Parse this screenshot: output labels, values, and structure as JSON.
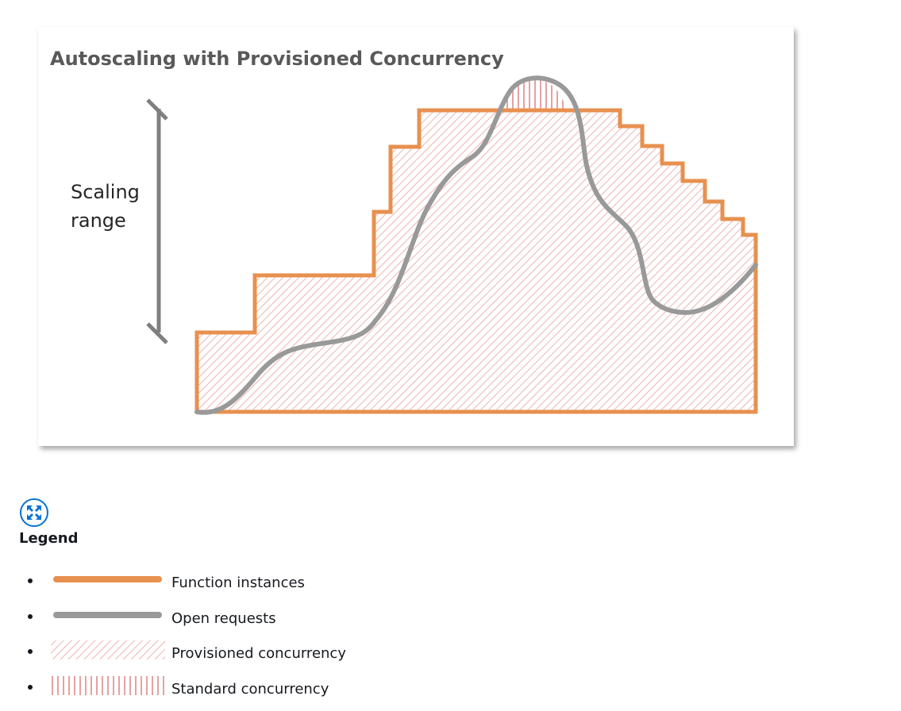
{
  "figure": {
    "title": "Autoscaling with Provisioned Concurrency",
    "scaling_label_line1": "Scaling",
    "scaling_label_line2": "range",
    "colors": {
      "function_instances": "#e8904f",
      "open_requests": "#999999",
      "provisioned_hatch": "#e9a0a0",
      "standard_hatch": "#d97a7a",
      "title_text": "#595959"
    }
  },
  "expand_button": {
    "icon": "expand-icon",
    "color": "#0972d3"
  },
  "legend": {
    "heading": "Legend",
    "items": [
      {
        "label": "Function instances",
        "swatch": "orange-line"
      },
      {
        "label": "Open requests",
        "swatch": "gray-line"
      },
      {
        "label": "Provisioned concurrency",
        "swatch": "diagonal-hatch"
      },
      {
        "label": "Standard concurrency",
        "swatch": "vertical-hatch"
      }
    ]
  }
}
